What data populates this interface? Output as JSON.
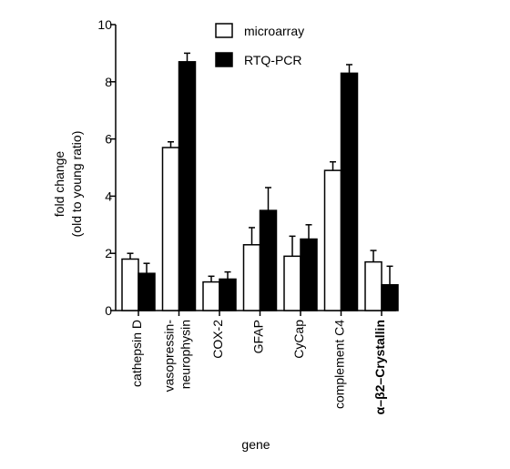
{
  "chart_data": {
    "type": "bar",
    "title": "",
    "xlabel": "gene",
    "ylabel_lines": [
      "fold change",
      "(old to young ratio)"
    ],
    "ylim": [
      0,
      10
    ],
    "yticks": [
      "0",
      "2",
      "4",
      "6",
      "8",
      "10"
    ],
    "categories": [
      [
        "cathepsin D"
      ],
      [
        "vasopressin-",
        "neurophysin"
      ],
      [
        "COX-2"
      ],
      [
        "GFAP"
      ],
      [
        "CyCap"
      ],
      [
        "complement C4"
      ],
      [
        "α–β2–Crystallin"
      ]
    ],
    "series": [
      {
        "name": "microarray",
        "fill": "#ffffff",
        "values": [
          1.8,
          5.7,
          1.0,
          2.3,
          1.9,
          4.9,
          1.7
        ],
        "errors": [
          0.2,
          0.2,
          0.2,
          0.6,
          0.7,
          0.3,
          0.4
        ]
      },
      {
        "name": "RTQ-PCR",
        "fill": "#000000",
        "values": [
          1.3,
          8.7,
          1.1,
          3.5,
          2.5,
          8.3,
          0.9
        ],
        "errors": [
          0.35,
          0.3,
          0.25,
          0.8,
          0.5,
          0.3,
          0.65
        ]
      }
    ],
    "legend_position": "top",
    "grid": false
  }
}
